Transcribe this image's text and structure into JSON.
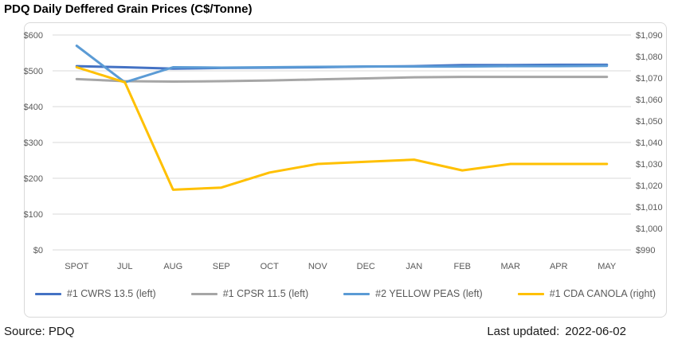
{
  "title": "PDQ Daily Deffered Grain Prices (C$/Tonne)",
  "footer": {
    "source_label": "Source: PDQ",
    "updated_label": "Last updated:",
    "updated_value": "2022-06-02"
  },
  "colors": {
    "grid": "#D9D9D9",
    "border": "#D9D9D9",
    "axis_text": "#595959"
  },
  "chart_data": {
    "type": "line",
    "title": "PDQ Daily Deffered Grain Prices (C$/Tonne)",
    "categories": [
      "SPOT",
      "JUL",
      "AUG",
      "SEP",
      "OCT",
      "NOV",
      "DEC",
      "JAN",
      "FEB",
      "MAR",
      "APR",
      "MAY"
    ],
    "series": [
      {
        "name": "#1 CWRS 13.5 (left)",
        "axis": "left",
        "color": "#4472C4",
        "values": [
          513,
          510,
          506,
          508,
          509,
          510,
          512,
          513,
          516,
          516,
          517,
          517
        ]
      },
      {
        "name": "#1 CPSR 11.5 (left)",
        "axis": "left",
        "color": "#A6A6A6",
        "values": [
          477,
          471,
          470,
          471,
          473,
          476,
          479,
          482,
          483,
          483,
          483,
          483
        ]
      },
      {
        "name": "#2 YELLOW PEAS (left)",
        "axis": "left",
        "color": "#5B9BD5",
        "values": [
          570,
          468,
          510,
          509,
          510,
          511,
          512,
          512,
          512,
          513,
          513,
          514
        ]
      },
      {
        "name": "#1 CDA CANOLA (right)",
        "axis": "right",
        "color": "#FFC000",
        "values": [
          1075,
          1068,
          1018,
          1019,
          1026,
          1030,
          1031,
          1032,
          1027,
          1030,
          1030,
          1030
        ]
      }
    ],
    "left_axis": {
      "min": 0,
      "max": 600,
      "ticks": [
        "$0",
        "$100",
        "$200",
        "$300",
        "$400",
        "$500",
        "$600"
      ]
    },
    "right_axis": {
      "min": 990,
      "max": 1090,
      "ticks": [
        "$990",
        "$1,000",
        "$1,010",
        "$1,020",
        "$1,030",
        "$1,040",
        "$1,050",
        "$1,060",
        "$1,070",
        "$1,080",
        "$1,090"
      ]
    },
    "grid": true,
    "legend_position": "bottom"
  }
}
